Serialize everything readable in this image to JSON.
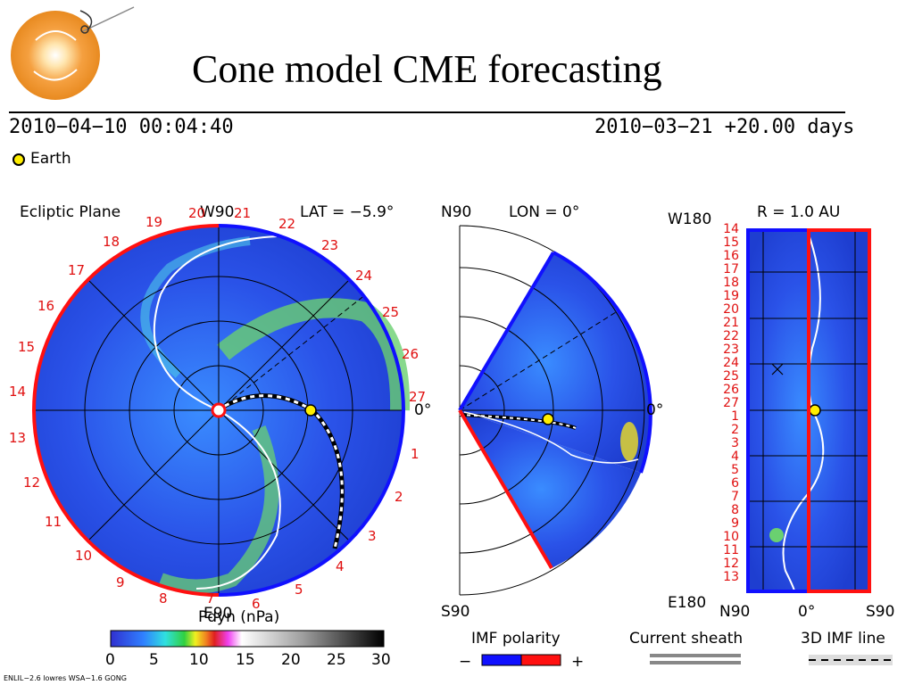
{
  "slide": {
    "title": "Cone model CME forecasting"
  },
  "header": {
    "datetime": "2010−04−10 00:04:40",
    "run_info": "2010−03−21 +20.00 days",
    "earth_legend": "Earth"
  },
  "ecliptic": {
    "label": "Ecliptic Plane",
    "top": "W90",
    "bottom": "E90",
    "right": "0°",
    "lat": "LAT = −5.9°",
    "carrington_labels": [
      "19",
      "20",
      "21",
      "22",
      "23",
      "24",
      "25",
      "26",
      "27",
      "1",
      "2",
      "3",
      "4",
      "5",
      "6",
      "7",
      "8",
      "9",
      "10",
      "11",
      "12",
      "13",
      "14",
      "15",
      "16",
      "17",
      "18"
    ]
  },
  "meridional": {
    "top": "N90",
    "bottom": "S90",
    "right": "0°",
    "lon": "LON = 0°"
  },
  "radial": {
    "top": "W180",
    "bottom": "E180",
    "r": "R = 1.0 AU",
    "xlabels": [
      "N90",
      "0°",
      "S90"
    ],
    "rowlabels": [
      "14",
      "15",
      "16",
      "17",
      "18",
      "19",
      "20",
      "21",
      "22",
      "23",
      "24",
      "25",
      "26",
      "27",
      "1",
      "2",
      "3",
      "4",
      "5",
      "6",
      "7",
      "8",
      "9",
      "10",
      "11",
      "12",
      "13"
    ]
  },
  "colorbar": {
    "title": "Pdyn (nPa)",
    "ticks": [
      "0",
      "5",
      "10",
      "15",
      "20",
      "25",
      "30"
    ]
  },
  "legend": {
    "imf_polarity": "IMF polarity",
    "minus": "−",
    "plus": "+",
    "current_sheath": "Current sheath",
    "imf_line": "3D IMF line"
  },
  "footer": {
    "model": "ENLIL−2.6 lowres WSA−1.6 GONG"
  },
  "colors": {
    "background_field": "#2a52e8",
    "polarity_negative": "#1010ff",
    "polarity_positive": "#ff1010",
    "accent_red": "#e01010",
    "earth": "#ffee00"
  }
}
